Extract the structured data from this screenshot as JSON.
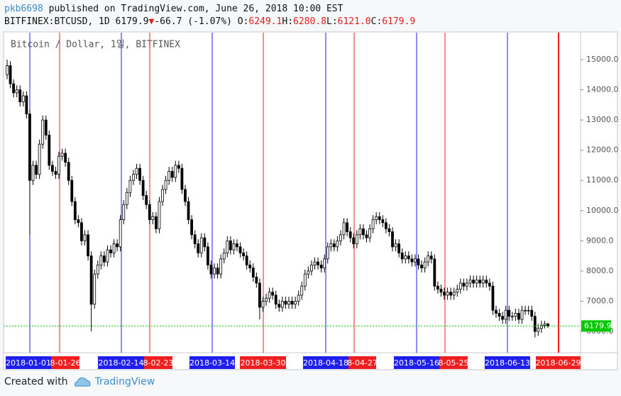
{
  "header": {
    "author": "pkb6698",
    "published": " published on TradingView.com, June 26, 2018 10:00 EST",
    "symbol": "BITFINEX:BTCUSD, 1D",
    "price": "6179.9",
    "arrow": "▼",
    "change": "-66.7 (-1.07%)",
    "ohlc": [
      {
        "key": "O:",
        "value": "6249.1"
      },
      {
        "key": "H:",
        "value": "6280.8"
      },
      {
        "key": "L:",
        "value": "6121.0"
      },
      {
        "key": "C:",
        "value": "6179.9"
      }
    ]
  },
  "footer": {
    "created": "Created with",
    "brand": "TradingView"
  },
  "chart_data": {
    "type": "candlestick",
    "watermark": "Bitcoin / Dollar, 1일, BITFINEX",
    "up_color": "#ffffff",
    "down_color": "#000000",
    "price_line_color": "#00c800",
    "grid": false,
    "ylim": [
      5295,
      15846
    ],
    "yticks": [
      {
        "value": 6000,
        "label": "6000.0"
      },
      {
        "value": 7000,
        "label": "7000.0"
      },
      {
        "value": 8000,
        "label": "8000.0"
      },
      {
        "value": 9000,
        "label": "9000.0"
      },
      {
        "value": 10000,
        "label": "10000.0"
      },
      {
        "value": 11000,
        "label": "11000.0"
      },
      {
        "value": 12000,
        "label": "12000.0"
      },
      {
        "value": 13000,
        "label": "13000.0"
      },
      {
        "value": 14000,
        "label": "14000.0"
      },
      {
        "value": 15000,
        "label": "15000.0"
      }
    ],
    "markers": [
      {
        "label": "2018-01-01",
        "color": "#1e1ef0"
      },
      {
        "label": "8-01-26",
        "color": "#f01e1e"
      },
      {
        "label": "2018-02-14",
        "color": "#1e1ef0"
      },
      {
        "label": "8-02-23",
        "color": "#f01e1e"
      },
      {
        "label": "2018-03-14",
        "color": "#1e1ef0"
      },
      {
        "label": "2018-03-30",
        "color": "#f01e1e"
      },
      {
        "label": "2018-04-18",
        "color": "#1e1ef0"
      },
      {
        "label": "8-04-27",
        "color": "#f01e1e"
      },
      {
        "label": "2018-05-16",
        "color": "#1e1ef0"
      },
      {
        "label": "8-05-25",
        "color": "#f01e1e"
      },
      {
        "label": "2018-06-13",
        "color": "#1e1ef0"
      },
      {
        "label": "2018-06-29",
        "color": "#f01e1e"
      }
    ],
    "candles": [
      [
        "2018-01-10",
        14500,
        15000,
        14350,
        14800
      ],
      [
        "2018-01-11",
        14800,
        14950,
        14050,
        14200
      ],
      [
        "2018-01-12",
        14200,
        14350,
        13750,
        13900
      ],
      [
        "2018-01-13",
        13900,
        14150,
        13750,
        14000
      ],
      [
        "2018-01-14",
        14000,
        14150,
        13450,
        13600
      ],
      [
        "2018-01-15",
        13600,
        13950,
        13450,
        13800
      ],
      [
        "2018-01-16",
        13800,
        13950,
        13050,
        13200
      ],
      [
        "2018-01-17",
        13200,
        13350,
        9200,
        11000
      ],
      [
        "2018-01-18",
        11000,
        11650,
        10850,
        11500
      ],
      [
        "2018-01-19",
        11500,
        11650,
        11050,
        11200
      ],
      [
        "2018-01-20",
        11200,
        12350,
        11050,
        12200
      ],
      [
        "2018-01-21",
        12200,
        13150,
        12050,
        13000
      ],
      [
        "2018-01-22",
        13000,
        13150,
        12350,
        12500
      ],
      [
        "2018-01-23",
        12500,
        12650,
        11350,
        11500
      ],
      [
        "2018-01-24",
        11500,
        11650,
        11150,
        11300
      ],
      [
        "2018-01-25",
        11300,
        11450,
        11050,
        11200
      ],
      [
        "2018-01-26",
        11200,
        11950,
        11050,
        11800
      ],
      [
        "2018-01-27",
        11800,
        12050,
        11650,
        11900
      ],
      [
        "2018-01-28",
        11900,
        12050,
        11450,
        11600
      ],
      [
        "2018-01-29",
        11600,
        11750,
        10850,
        11000
      ],
      [
        "2018-01-30",
        11000,
        11150,
        10150,
        10300
      ],
      [
        "2018-01-31",
        10300,
        10450,
        9550,
        9700
      ],
      [
        "2018-02-01",
        9700,
        9850,
        9450,
        9600
      ],
      [
        "2018-02-02",
        9600,
        9750,
        8850,
        9000
      ],
      [
        "2018-02-03",
        9000,
        9350,
        8850,
        9200
      ],
      [
        "2018-02-04",
        9200,
        9350,
        8350,
        8500
      ],
      [
        "2018-02-05",
        8500,
        8650,
        6000,
        6900
      ],
      [
        "2018-02-06",
        6900,
        8050,
        6750,
        7900
      ],
      [
        "2018-02-07",
        7900,
        8350,
        7750,
        8200
      ],
      [
        "2018-02-08",
        8200,
        8650,
        8050,
        8500
      ],
      [
        "2018-02-09",
        8500,
        8650,
        8150,
        8300
      ],
      [
        "2018-02-10",
        8300,
        8850,
        8150,
        8700
      ],
      [
        "2018-02-11",
        8700,
        8850,
        8450,
        8600
      ],
      [
        "2018-02-12",
        8600,
        9050,
        8450,
        8900
      ],
      [
        "2018-02-13",
        8900,
        9050,
        8650,
        8800
      ],
      [
        "2018-02-14",
        8800,
        9850,
        8650,
        9700
      ],
      [
        "2018-02-15",
        9700,
        10350,
        9550,
        10200
      ],
      [
        "2018-02-16",
        10200,
        10750,
        10050,
        10600
      ],
      [
        "2018-02-17",
        10600,
        11150,
        10450,
        11000
      ],
      [
        "2018-02-18",
        11000,
        11350,
        10850,
        11200
      ],
      [
        "2018-02-19",
        11200,
        11550,
        11050,
        11400
      ],
      [
        "2018-02-20",
        11400,
        11550,
        10850,
        11000
      ],
      [
        "2018-02-21",
        11000,
        11150,
        10350,
        10500
      ],
      [
        "2018-02-22",
        10500,
        10650,
        10050,
        10200
      ],
      [
        "2018-02-23",
        10200,
        10350,
        9550,
        9700
      ],
      [
        "2018-02-24",
        9700,
        9950,
        9550,
        9800
      ],
      [
        "2018-02-25",
        9800,
        9950,
        9250,
        9400
      ],
      [
        "2018-02-26",
        9400,
        10450,
        9250,
        10300
      ],
      [
        "2018-02-27",
        10300,
        10850,
        10150,
        10700
      ],
      [
        "2018-02-28",
        10700,
        11150,
        10550,
        11000
      ],
      [
        "2018-03-01",
        11000,
        11450,
        10850,
        11300
      ],
      [
        "2018-03-02",
        11300,
        11450,
        10950,
        11100
      ],
      [
        "2018-03-03",
        11100,
        11650,
        10950,
        11500
      ],
      [
        "2018-03-04",
        11500,
        11650,
        11250,
        11400
      ],
      [
        "2018-03-05",
        11400,
        11550,
        10550,
        10700
      ],
      [
        "2018-03-06",
        10700,
        10850,
        10150,
        10300
      ],
      [
        "2018-03-07",
        10300,
        10450,
        9550,
        9700
      ],
      [
        "2018-03-08",
        9700,
        9850,
        9050,
        9200
      ],
      [
        "2018-03-09",
        9200,
        9350,
        8750,
        8900
      ],
      [
        "2018-03-10",
        8900,
        9050,
        8450,
        8600
      ],
      [
        "2018-03-11",
        8600,
        9250,
        8450,
        9100
      ],
      [
        "2018-03-12",
        9100,
        9250,
        8650,
        8800
      ],
      [
        "2018-03-13",
        8800,
        8950,
        8050,
        8200
      ],
      [
        "2018-03-14",
        8200,
        8350,
        7750,
        7900
      ],
      [
        "2018-03-15",
        7900,
        8250,
        7750,
        8100
      ],
      [
        "2018-03-16",
        8100,
        8250,
        7750,
        7900
      ],
      [
        "2018-03-17",
        7900,
        8550,
        7750,
        8400
      ],
      [
        "2018-03-18",
        8400,
        8750,
        8250,
        8600
      ],
      [
        "2018-03-19",
        8600,
        9150,
        8450,
        9000
      ],
      [
        "2018-03-20",
        9000,
        9150,
        8550,
        8700
      ],
      [
        "2018-03-21",
        8700,
        9050,
        8550,
        8900
      ],
      [
        "2018-03-22",
        8900,
        9050,
        8650,
        8800
      ],
      [
        "2018-03-23",
        8800,
        8950,
        8450,
        8600
      ],
      [
        "2018-03-24",
        8600,
        8750,
        8350,
        8500
      ],
      [
        "2018-03-25",
        8500,
        8650,
        8050,
        8200
      ],
      [
        "2018-03-26",
        8200,
        8350,
        7950,
        8100
      ],
      [
        "2018-03-27",
        8100,
        8250,
        7650,
        7800
      ],
      [
        "2018-03-28",
        7800,
        7950,
        7450,
        7600
      ],
      [
        "2018-03-29",
        7600,
        7750,
        6400,
        6800
      ],
      [
        "2018-03-30",
        6800,
        7150,
        6650,
        7000
      ],
      [
        "2018-03-31",
        7000,
        7250,
        6850,
        7100
      ],
      [
        "2018-04-01",
        7100,
        7450,
        6950,
        7300
      ],
      [
        "2018-04-02",
        7300,
        7450,
        7050,
        7200
      ],
      [
        "2018-04-03",
        7200,
        7350,
        6750,
        6900
      ],
      [
        "2018-04-04",
        6900,
        7050,
        6650,
        6800
      ],
      [
        "2018-04-05",
        6800,
        7150,
        6650,
        7000
      ],
      [
        "2018-04-06",
        7000,
        7150,
        6750,
        6900
      ],
      [
        "2018-04-07",
        6900,
        7150,
        6750,
        7000
      ],
      [
        "2018-04-08",
        7000,
        7150,
        6750,
        6900
      ],
      [
        "2018-04-09",
        6900,
        7150,
        6750,
        7000
      ],
      [
        "2018-04-10",
        7000,
        7350,
        6850,
        7200
      ],
      [
        "2018-04-11",
        7200,
        7650,
        7050,
        7500
      ],
      [
        "2018-04-12",
        7500,
        8050,
        7350,
        7900
      ],
      [
        "2018-04-13",
        7900,
        8150,
        7750,
        8000
      ],
      [
        "2018-04-14",
        8000,
        8350,
        7850,
        8200
      ],
      [
        "2018-04-15",
        8200,
        8450,
        8050,
        8300
      ],
      [
        "2018-04-16",
        8300,
        8450,
        8050,
        8200
      ],
      [
        "2018-04-17",
        8200,
        8350,
        7950,
        8100
      ],
      [
        "2018-04-18",
        8100,
        8550,
        7950,
        8400
      ],
      [
        "2018-04-19",
        8400,
        8950,
        8250,
        8800
      ],
      [
        "2018-04-20",
        8800,
        9050,
        8650,
        8900
      ],
      [
        "2018-04-21",
        8900,
        9050,
        8650,
        8800
      ],
      [
        "2018-04-22",
        8800,
        9150,
        8650,
        9000
      ],
      [
        "2018-04-23",
        9000,
        9350,
        8850,
        9200
      ],
      [
        "2018-04-24",
        9200,
        9750,
        9050,
        9600
      ],
      [
        "2018-04-25",
        9600,
        9750,
        9150,
        9300
      ],
      [
        "2018-04-26",
        9300,
        9450,
        8950,
        9100
      ],
      [
        "2018-04-27",
        9100,
        9250,
        8750,
        8900
      ],
      [
        "2018-04-28",
        8900,
        9350,
        8750,
        9200
      ],
      [
        "2018-04-29",
        9200,
        9550,
        9050,
        9400
      ],
      [
        "2018-04-30",
        9400,
        9550,
        9050,
        9200
      ],
      [
        "2018-05-01",
        9200,
        9350,
        8950,
        9100
      ],
      [
        "2018-05-02",
        9100,
        9550,
        8950,
        9400
      ],
      [
        "2018-05-03",
        9400,
        9850,
        9250,
        9700
      ],
      [
        "2018-05-04",
        9700,
        9950,
        9550,
        9800
      ],
      [
        "2018-05-05",
        9800,
        9950,
        9550,
        9700
      ],
      [
        "2018-05-06",
        9700,
        9850,
        9450,
        9600
      ],
      [
        "2018-05-07",
        9600,
        9750,
        9250,
        9400
      ],
      [
        "2018-05-08",
        9400,
        9550,
        9150,
        9300
      ],
      [
        "2018-05-09",
        9300,
        9450,
        8650,
        8800
      ],
      [
        "2018-05-10",
        8800,
        9050,
        8650,
        8900
      ],
      [
        "2018-05-11",
        8900,
        9050,
        8450,
        8600
      ],
      [
        "2018-05-12",
        8600,
        8750,
        8250,
        8400
      ],
      [
        "2018-05-13",
        8400,
        8650,
        8250,
        8500
      ],
      [
        "2018-05-14",
        8500,
        8650,
        8250,
        8400
      ],
      [
        "2018-05-15",
        8400,
        8550,
        8150,
        8300
      ],
      [
        "2018-05-16",
        8300,
        8550,
        8150,
        8400
      ],
      [
        "2018-05-17",
        8400,
        8550,
        8050,
        8200
      ],
      [
        "2018-05-18",
        8200,
        8350,
        7950,
        8100
      ],
      [
        "2018-05-19",
        8100,
        8450,
        7950,
        8300
      ],
      [
        "2018-05-20",
        8300,
        8650,
        8150,
        8500
      ],
      [
        "2018-05-21",
        8500,
        8650,
        8250,
        8400
      ],
      [
        "2018-05-22",
        8400,
        8550,
        7350,
        7500
      ],
      [
        "2018-05-23",
        7500,
        7650,
        7250,
        7400
      ],
      [
        "2018-05-24",
        7400,
        7550,
        7150,
        7300
      ],
      [
        "2018-05-25",
        7300,
        7450,
        7050,
        7200
      ],
      [
        "2018-05-26",
        7200,
        7450,
        7050,
        7300
      ],
      [
        "2018-05-27",
        7300,
        7450,
        7050,
        7200
      ],
      [
        "2018-05-28",
        7200,
        7450,
        7050,
        7300
      ],
      [
        "2018-05-29",
        7300,
        7550,
        7150,
        7400
      ],
      [
        "2018-05-30",
        7400,
        7750,
        7250,
        7600
      ],
      [
        "2018-05-31",
        7600,
        7750,
        7350,
        7500
      ],
      [
        "2018-06-01",
        7500,
        7750,
        7350,
        7600
      ],
      [
        "2018-06-02",
        7600,
        7850,
        7450,
        7700
      ],
      [
        "2018-06-03",
        7700,
        7850,
        7450,
        7600
      ],
      [
        "2018-06-04",
        7600,
        7850,
        7450,
        7700
      ],
      [
        "2018-06-05",
        7700,
        7850,
        7450,
        7600
      ],
      [
        "2018-06-06",
        7600,
        7850,
        7450,
        7700
      ],
      [
        "2018-06-07",
        7700,
        7850,
        7450,
        7600
      ],
      [
        "2018-06-08",
        7600,
        7750,
        7350,
        7500
      ],
      [
        "2018-06-09",
        7500,
        7650,
        6550,
        6700
      ],
      [
        "2018-06-10",
        6700,
        6850,
        6450,
        6600
      ],
      [
        "2018-06-11",
        6600,
        6750,
        6350,
        6500
      ],
      [
        "2018-06-12",
        6500,
        6650,
        6250,
        6400
      ],
      [
        "2018-06-13",
        6400,
        6850,
        6250,
        6700
      ],
      [
        "2018-06-14",
        6700,
        6850,
        6350,
        6500
      ],
      [
        "2018-06-15",
        6500,
        6650,
        6350,
        6500
      ],
      [
        "2018-06-16",
        6500,
        6750,
        6350,
        6600
      ],
      [
        "2018-06-17",
        6600,
        6750,
        6250,
        6400
      ],
      [
        "2018-06-18",
        6400,
        6850,
        6250,
        6700
      ],
      [
        "2018-06-19",
        6700,
        6850,
        6550,
        6700
      ],
      [
        "2018-06-20",
        6700,
        6850,
        6550,
        6700
      ],
      [
        "2018-06-21",
        6700,
        6850,
        6350,
        6500
      ],
      [
        "2018-06-22",
        6500,
        6650,
        5800,
        6000
      ],
      [
        "2018-06-23",
        6000,
        6250,
        5850,
        6100
      ],
      [
        "2018-06-24",
        6100,
        6350,
        5950,
        6200
      ],
      [
        "2018-06-25",
        6200,
        6350,
        6100,
        6249.1
      ],
      [
        "2018-06-26",
        6249.1,
        6280.8,
        6121,
        6179.9
      ]
    ]
  }
}
